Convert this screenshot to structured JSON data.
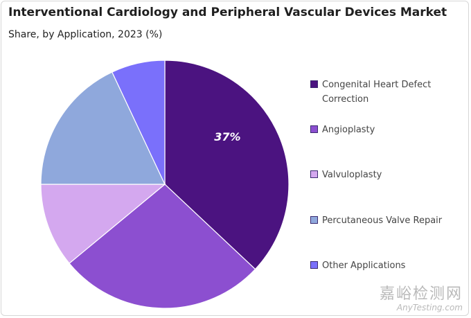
{
  "title": "Interventional Cardiology and Peripheral Vascular Devices Market",
  "subtitle": "Share, by Application, 2023 (%)",
  "chart_data": {
    "type": "pie",
    "title": "Interventional Cardiology and Peripheral Vascular Devices Market",
    "subtitle": "Share, by Application, 2023 (%)",
    "legend_position": "right",
    "slices": [
      {
        "label": "Congenital Heart Defect Correction",
        "value": 37,
        "color": "#4b1380",
        "data_label": "37%"
      },
      {
        "label": "Angioplasty",
        "value": 27,
        "color": "#8c4fd0",
        "data_label": ""
      },
      {
        "label": "Valvuloplasty",
        "value": 11,
        "color": "#d4a8ef",
        "data_label": ""
      },
      {
        "label": "Percutaneous Valve Repair",
        "value": 18,
        "color": "#8fa8dc",
        "data_label": ""
      },
      {
        "label": "Other Applications",
        "value": 7,
        "color": "#7a70fb",
        "data_label": ""
      }
    ]
  },
  "watermark": {
    "cn": "嘉峪检测网",
    "en": "AnyTesting.com"
  }
}
